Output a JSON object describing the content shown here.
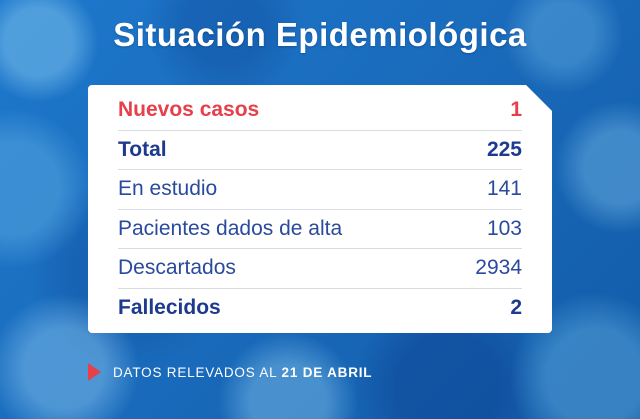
{
  "title": "Situación Epidemiológica",
  "card": {
    "rows": [
      {
        "label": "Nuevos casos",
        "value": "1",
        "style": "red-bold"
      },
      {
        "label": "Total",
        "value": "225",
        "style": "navy-bold"
      },
      {
        "label": "En estudio",
        "value": "141",
        "style": "navy"
      },
      {
        "label": "Pacientes dados de alta",
        "value": "103",
        "style": "navy"
      },
      {
        "label": "Descartados",
        "value": "2934",
        "style": "navy"
      },
      {
        "label": "Fallecidos",
        "value": "2",
        "style": "navy-bold"
      }
    ]
  },
  "footer": {
    "prefix": "DATOS RELEVADOS AL",
    "date": "21 DE ABRIL"
  },
  "colors": {
    "background_blue": "#1a6cbd",
    "accent_red": "#e6404b",
    "navy_bold": "#1d3a8e",
    "navy_regular": "#2a4a9d",
    "card_white": "#ffffff"
  },
  "chart_data": {
    "type": "table",
    "title": "Situación Epidemiológica",
    "categories": [
      "Nuevos casos",
      "Total",
      "En estudio",
      "Pacientes dados de alta",
      "Descartados",
      "Fallecidos"
    ],
    "values": [
      1,
      225,
      141,
      103,
      2934,
      2
    ],
    "annotations": [
      "DATOS RELEVADOS AL 21 DE ABRIL"
    ]
  }
}
